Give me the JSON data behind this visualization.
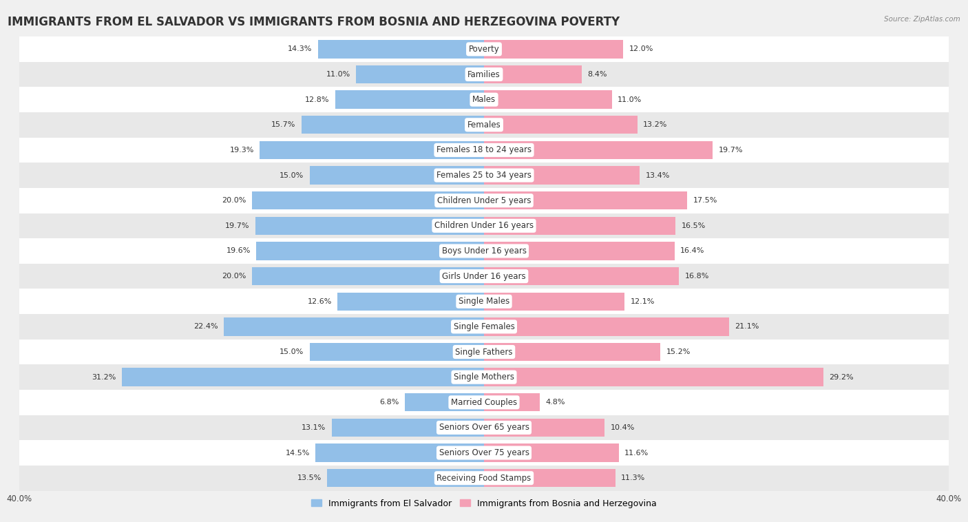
{
  "title": "IMMIGRANTS FROM EL SALVADOR VS IMMIGRANTS FROM BOSNIA AND HERZEGOVINA POVERTY",
  "source": "Source: ZipAtlas.com",
  "categories": [
    "Poverty",
    "Families",
    "Males",
    "Females",
    "Females 18 to 24 years",
    "Females 25 to 34 years",
    "Children Under 5 years",
    "Children Under 16 years",
    "Boys Under 16 years",
    "Girls Under 16 years",
    "Single Males",
    "Single Females",
    "Single Fathers",
    "Single Mothers",
    "Married Couples",
    "Seniors Over 65 years",
    "Seniors Over 75 years",
    "Receiving Food Stamps"
  ],
  "left_values": [
    14.3,
    11.0,
    12.8,
    15.7,
    19.3,
    15.0,
    20.0,
    19.7,
    19.6,
    20.0,
    12.6,
    22.4,
    15.0,
    31.2,
    6.8,
    13.1,
    14.5,
    13.5
  ],
  "right_values": [
    12.0,
    8.4,
    11.0,
    13.2,
    19.7,
    13.4,
    17.5,
    16.5,
    16.4,
    16.8,
    12.1,
    21.1,
    15.2,
    29.2,
    4.8,
    10.4,
    11.6,
    11.3
  ],
  "left_color": "#92bfe8",
  "right_color": "#f4a0b5",
  "left_label": "Immigrants from El Salvador",
  "right_label": "Immigrants from Bosnia and Herzegovina",
  "xlim": 40.0,
  "background_color": "#f0f0f0",
  "row_bg_even": "#ffffff",
  "row_bg_odd": "#e8e8e8",
  "title_fontsize": 12,
  "label_fontsize": 8.5,
  "value_fontsize": 8,
  "axis_label_fontsize": 8.5
}
